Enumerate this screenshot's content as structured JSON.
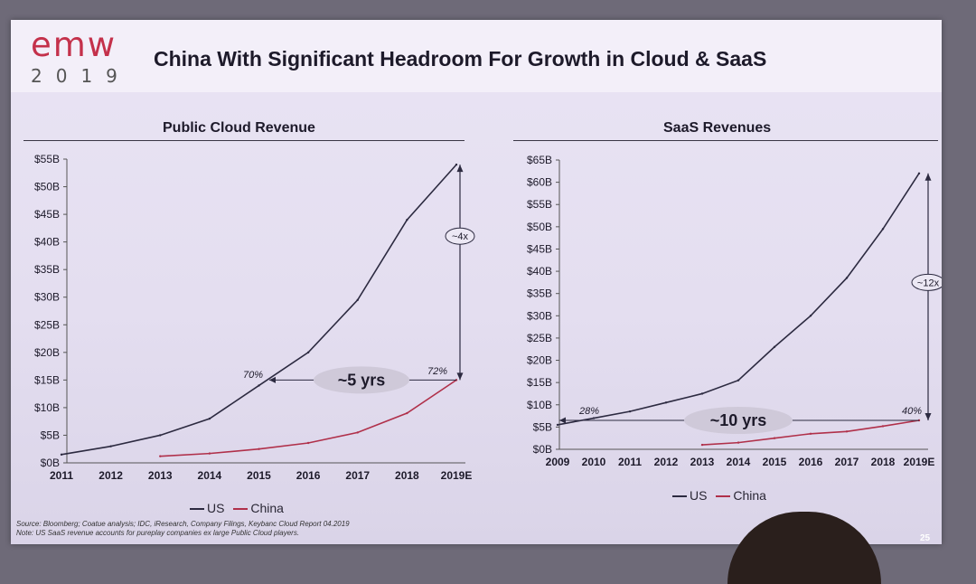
{
  "header": {
    "logo_text": "emw",
    "logo_year": "2019",
    "title": "China With Significant Headroom For Growth in Cloud & SaaS"
  },
  "chart_data": [
    {
      "type": "line",
      "title": "Public Cloud Revenue",
      "y_ticks": [
        "$0B",
        "$5B",
        "$10B",
        "$15B",
        "$20B",
        "$25B",
        "$30B",
        "$35B",
        "$40B",
        "$45B",
        "$50B",
        "$55B"
      ],
      "ylim": [
        0,
        55
      ],
      "categories": [
        "2011",
        "2012",
        "2013",
        "2014",
        "2015",
        "2016",
        "2017",
        "2018",
        "2019E"
      ],
      "series": [
        {
          "name": "US",
          "color": "#2c2a40",
          "values": [
            1.5,
            3.0,
            5.0,
            8.0,
            14.0,
            20.0,
            29.5,
            44.0,
            54.0
          ]
        },
        {
          "name": "China",
          "color": "#b0304a",
          "values": [
            null,
            null,
            1.2,
            1.7,
            2.5,
            3.6,
            5.5,
            9.0,
            15.0
          ]
        }
      ],
      "annotations": {
        "gap_label": "~5 yrs",
        "left_pct": "70%",
        "right_pct": "72%",
        "multiple": "~4x"
      },
      "legend": [
        "US",
        "China"
      ]
    },
    {
      "type": "line",
      "title": "SaaS Revenues",
      "y_ticks": [
        "$0B",
        "$5B",
        "$10B",
        "$15B",
        "$20B",
        "$25B",
        "$30B",
        "$35B",
        "$40B",
        "$45B",
        "$50B",
        "$55B",
        "$60B",
        "$65B"
      ],
      "ylim": [
        0,
        65
      ],
      "categories": [
        "2009",
        "2010",
        "2011",
        "2012",
        "2013",
        "2014",
        "2015",
        "2016",
        "2017",
        "2018",
        "2019E"
      ],
      "series": [
        {
          "name": "US",
          "color": "#2c2a40",
          "values": [
            5.5,
            7.0,
            8.5,
            10.5,
            12.5,
            15.5,
            23.0,
            30.0,
            38.5,
            49.5,
            62.0
          ]
        },
        {
          "name": "China",
          "color": "#b0304a",
          "values": [
            null,
            null,
            null,
            null,
            1.0,
            1.5,
            2.5,
            3.5,
            4.0,
            5.2,
            6.5
          ]
        }
      ],
      "annotations": {
        "gap_label": "~10 yrs",
        "left_pct": "28%",
        "right_pct": "40%",
        "multiple": "~12x"
      },
      "legend": [
        "US",
        "China"
      ]
    }
  ],
  "footer": {
    "source": "Source: Bloomberg; Coatue analysis; IDC, iResearch, Company Filings, Keybanc Cloud Report 04.2019",
    "note": "Note: US SaaS revenue accounts for pureplay companies ex large Public Cloud players.",
    "page_number": "25"
  }
}
